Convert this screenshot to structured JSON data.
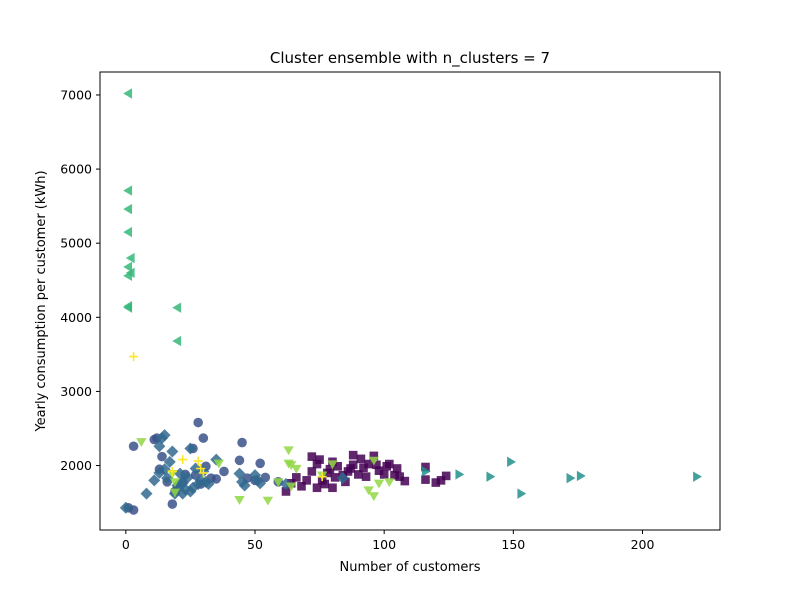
{
  "chart_data": {
    "type": "scatter",
    "title": "Cluster ensemble with n_clusters = 7",
    "xlabel": "Number of customers",
    "ylabel": "Yearly consumption per customer (kWh)",
    "xlim": [
      -10,
      230
    ],
    "ylim": [
      1130,
      7310
    ],
    "xticks": [
      0,
      50,
      100,
      150,
      200
    ],
    "yticks": [
      2000,
      3000,
      4000,
      5000,
      6000,
      7000
    ],
    "grid": false,
    "legend": "none",
    "series": [
      {
        "marker": "square",
        "color": "#440154",
        "points": [
          [
            62,
            1650
          ],
          [
            64,
            1760
          ],
          [
            66,
            1840
          ],
          [
            68,
            1720
          ],
          [
            70,
            1800
          ],
          [
            72,
            1920
          ],
          [
            72,
            2120
          ],
          [
            74,
            1700
          ],
          [
            74,
            2020
          ],
          [
            75,
            2080
          ],
          [
            76,
            1800
          ],
          [
            77,
            1750
          ],
          [
            78,
            1900
          ],
          [
            79,
            1950
          ],
          [
            80,
            1700
          ],
          [
            80,
            2050
          ],
          [
            81,
            1840
          ],
          [
            82,
            1990
          ],
          [
            84,
            1870
          ],
          [
            85,
            1780
          ],
          [
            86,
            1920
          ],
          [
            87,
            1960
          ],
          [
            88,
            2010
          ],
          [
            88,
            2140
          ],
          [
            90,
            1880
          ],
          [
            91,
            2090
          ],
          [
            92,
            1970
          ],
          [
            93,
            1850
          ],
          [
            94,
            2020
          ],
          [
            96,
            2130
          ],
          [
            97,
            2010
          ],
          [
            98,
            1930
          ],
          [
            100,
            1880
          ],
          [
            101,
            1990
          ],
          [
            102,
            2020
          ],
          [
            104,
            1870
          ],
          [
            105,
            1960
          ],
          [
            106,
            1850
          ],
          [
            108,
            1790
          ],
          [
            116,
            1810
          ],
          [
            116,
            1980
          ],
          [
            120,
            1770
          ],
          [
            122,
            1800
          ],
          [
            124,
            1860
          ]
        ]
      },
      {
        "marker": "circle",
        "color": "#3b528b",
        "points": [
          [
            1,
            1430
          ],
          [
            3,
            1400
          ],
          [
            3,
            2260
          ],
          [
            11,
            2350
          ],
          [
            12,
            2370
          ],
          [
            13,
            1950
          ],
          [
            14,
            2120
          ],
          [
            16,
            1780
          ],
          [
            18,
            1480
          ],
          [
            19,
            1650
          ],
          [
            20,
            1700
          ],
          [
            22,
            1780
          ],
          [
            23,
            1880
          ],
          [
            26,
            2230
          ],
          [
            27,
            1870
          ],
          [
            28,
            2580
          ],
          [
            29,
            1750
          ],
          [
            30,
            2370
          ],
          [
            31,
            1990
          ],
          [
            33,
            1830
          ],
          [
            35,
            1820
          ],
          [
            38,
            1920
          ],
          [
            44,
            2070
          ],
          [
            45,
            2310
          ],
          [
            47,
            1830
          ],
          [
            50,
            1800
          ],
          [
            52,
            2030
          ],
          [
            54,
            1840
          ],
          [
            59,
            1780
          ]
        ]
      },
      {
        "marker": "diamond",
        "color": "#31688e",
        "points": [
          [
            0,
            1430
          ],
          [
            8,
            1620
          ],
          [
            11,
            1800
          ],
          [
            13,
            1900
          ],
          [
            13,
            2260
          ],
          [
            14,
            2370
          ],
          [
            15,
            2410
          ],
          [
            15,
            1950
          ],
          [
            16,
            1830
          ],
          [
            17,
            2050
          ],
          [
            18,
            2190
          ],
          [
            19,
            1620
          ],
          [
            20,
            1730
          ],
          [
            21,
            1890
          ],
          [
            22,
            1620
          ],
          [
            22,
            1760
          ],
          [
            23,
            1680
          ],
          [
            24,
            1840
          ],
          [
            25,
            2230
          ],
          [
            25,
            1650
          ],
          [
            26,
            1700
          ],
          [
            27,
            1960
          ],
          [
            28,
            1750
          ],
          [
            29,
            1800
          ],
          [
            30,
            1920
          ],
          [
            31,
            1780
          ],
          [
            32,
            1750
          ],
          [
            35,
            2080
          ],
          [
            44,
            1890
          ],
          [
            45,
            1780
          ],
          [
            46,
            1730
          ],
          [
            50,
            1870
          ],
          [
            51,
            1800
          ],
          [
            52,
            1760
          ],
          [
            62,
            1750
          ],
          [
            84,
            1830
          ]
        ]
      },
      {
        "marker": "triangle-right",
        "color": "#21918c",
        "points": [
          [
            116,
            1920
          ],
          [
            129,
            1880
          ],
          [
            141,
            1850
          ],
          [
            149,
            2050
          ],
          [
            153,
            1620
          ],
          [
            172,
            1830
          ],
          [
            176,
            1860
          ],
          [
            221,
            1850
          ]
        ]
      },
      {
        "marker": "triangle-left",
        "color": "#35b779",
        "points": [
          [
            1,
            7020
          ],
          [
            1,
            5710
          ],
          [
            1,
            5460
          ],
          [
            1,
            5150
          ],
          [
            1,
            4680
          ],
          [
            1,
            4560
          ],
          [
            1,
            4150
          ],
          [
            1,
            4130
          ],
          [
            2,
            4800
          ],
          [
            2,
            4600
          ],
          [
            20,
            4130
          ],
          [
            20,
            3680
          ]
        ]
      },
      {
        "marker": "triangle-down",
        "color": "#90d743",
        "points": [
          [
            6,
            2320
          ],
          [
            18,
            1890
          ],
          [
            19,
            1780
          ],
          [
            19,
            1640
          ],
          [
            36,
            2030
          ],
          [
            44,
            1540
          ],
          [
            55,
            1530
          ],
          [
            59,
            1780
          ],
          [
            63,
            2210
          ],
          [
            63,
            2030
          ],
          [
            64,
            2010
          ],
          [
            64,
            1720
          ],
          [
            66,
            1960
          ],
          [
            76,
            1870
          ],
          [
            80,
            2020
          ],
          [
            94,
            1670
          ],
          [
            96,
            1590
          ],
          [
            96,
            2070
          ],
          [
            98,
            1760
          ],
          [
            102,
            1780
          ]
        ]
      },
      {
        "marker": "plus",
        "color": "#fde725",
        "points": [
          [
            3,
            3470
          ],
          [
            18,
            1920
          ],
          [
            22,
            2080
          ],
          [
            28,
            2060
          ],
          [
            29,
            1960
          ],
          [
            30,
            1900
          ],
          [
            76,
            1850
          ]
        ]
      }
    ]
  }
}
